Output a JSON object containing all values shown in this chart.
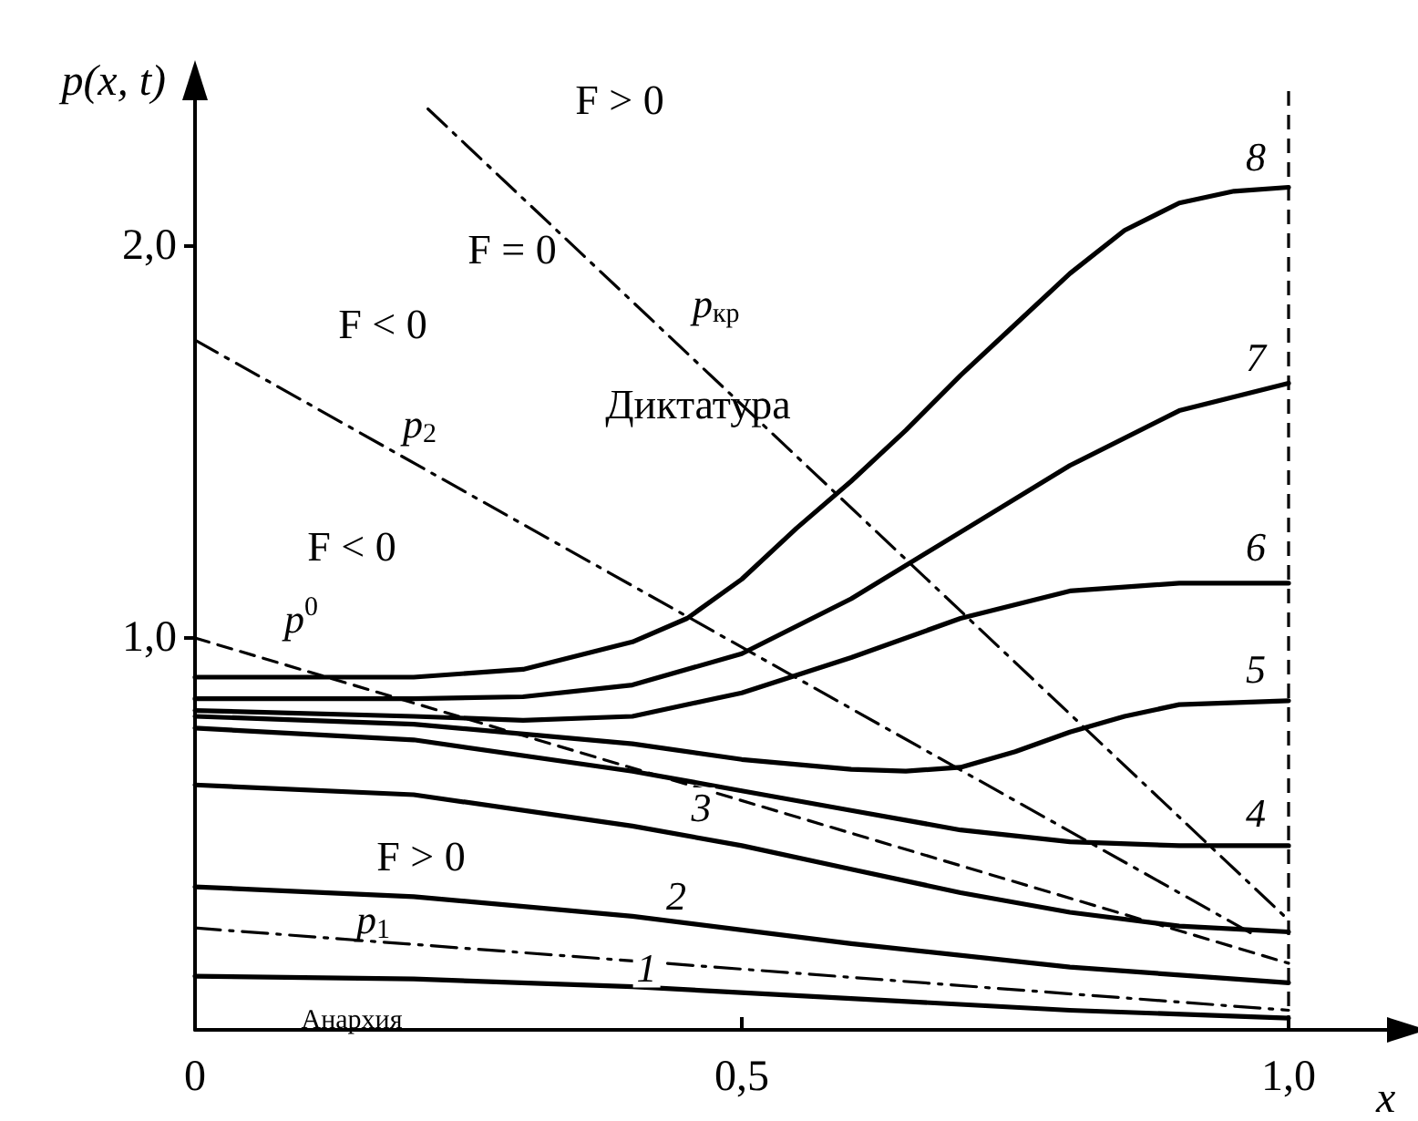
{
  "chart_data": {
    "type": "line",
    "xlabel": "x",
    "ylabel": "p(x, t)",
    "xlim": [
      0,
      1.1
    ],
    "ylim": [
      0,
      2.4
    ],
    "xticks": [
      0,
      {
        "value": 0.5,
        "label": "0,5"
      },
      {
        "value": 1,
        "label": "1,0"
      }
    ],
    "yticks": [
      {
        "value": 1,
        "label": "1,0"
      },
      {
        "value": 2,
        "label": "2,0"
      }
    ],
    "grid": false,
    "legend": false,
    "marker": "none",
    "series": [
      {
        "name": "1",
        "color": "#000000",
        "line_style": "solid",
        "x": [
          0,
          0.2,
          0.4,
          0.6,
          0.8,
          1.0
        ],
        "values": [
          0.137,
          0.13,
          0.11,
          0.08,
          0.05,
          0.03
        ]
      },
      {
        "name": "2",
        "color": "#000000",
        "line_style": "solid",
        "x": [
          0,
          0.2,
          0.4,
          0.6,
          0.8,
          1.0
        ],
        "values": [
          0.365,
          0.34,
          0.29,
          0.22,
          0.16,
          0.12
        ]
      },
      {
        "name": "3",
        "color": "#000000",
        "line_style": "solid",
        "x": [
          0,
          0.2,
          0.4,
          0.5,
          0.6,
          0.7,
          0.8,
          0.9,
          1.0
        ],
        "values": [
          0.625,
          0.6,
          0.52,
          0.47,
          0.41,
          0.35,
          0.3,
          0.265,
          0.25
        ]
      },
      {
        "name": "4",
        "color": "#000000",
        "line_style": "solid",
        "x": [
          0,
          0.2,
          0.4,
          0.5,
          0.6,
          0.7,
          0.8,
          0.9,
          1.0
        ],
        "values": [
          0.77,
          0.74,
          0.66,
          0.61,
          0.56,
          0.51,
          0.48,
          0.47,
          0.47
        ]
      },
      {
        "name": "5",
        "color": "#000000",
        "line_style": "solid",
        "x": [
          0,
          0.2,
          0.4,
          0.5,
          0.6,
          0.65,
          0.7,
          0.75,
          0.8,
          0.85,
          0.9,
          1.0
        ],
        "values": [
          0.8,
          0.78,
          0.73,
          0.69,
          0.665,
          0.66,
          0.67,
          0.71,
          0.76,
          0.8,
          0.83,
          0.84
        ]
      },
      {
        "name": "6",
        "color": "#000000",
        "line_style": "solid",
        "x": [
          0,
          0.2,
          0.3,
          0.4,
          0.5,
          0.6,
          0.7,
          0.8,
          0.9,
          1.0
        ],
        "values": [
          0.815,
          0.8,
          0.79,
          0.8,
          0.86,
          0.95,
          1.05,
          1.12,
          1.14,
          1.14
        ]
      },
      {
        "name": "7",
        "color": "#000000",
        "line_style": "solid",
        "x": [
          0,
          0.2,
          0.3,
          0.4,
          0.5,
          0.6,
          0.7,
          0.8,
          0.9,
          1.0
        ],
        "values": [
          0.845,
          0.845,
          0.85,
          0.88,
          0.96,
          1.1,
          1.27,
          1.44,
          1.58,
          1.65
        ]
      },
      {
        "name": "8",
        "color": "#000000",
        "line_style": "solid",
        "x": [
          0,
          0.2,
          0.3,
          0.4,
          0.45,
          0.5,
          0.55,
          0.6,
          0.65,
          0.7,
          0.75,
          0.8,
          0.85,
          0.9,
          0.95,
          1.0
        ],
        "values": [
          0.9,
          0.9,
          0.92,
          0.99,
          1.05,
          1.15,
          1.28,
          1.4,
          1.53,
          1.67,
          1.8,
          1.93,
          2.04,
          2.11,
          2.14,
          2.15
        ]
      },
      {
        "name": "p$^{0}$",
        "color": "#000000",
        "line_style": "dashed",
        "x": [
          0,
          1.0
        ],
        "values": [
          1.0,
          0.17
        ]
      },
      {
        "name": "p$_{1}$",
        "color": "#000000",
        "line_style": "dashdot",
        "x": [
          0,
          1.0
        ],
        "values": [
          0.26,
          0.05
        ]
      },
      {
        "name": "p$_{2}$",
        "color": "#000000",
        "line_style": "dashdot",
        "x": [
          0,
          0.97
        ],
        "values": [
          1.76,
          0.24
        ]
      },
      {
        "name": "p$_{кр}$",
        "color": "#000000",
        "line_style": "dashdot",
        "x": [
          0.213,
          1.0
        ],
        "values": [
          2.35,
          0.28
        ]
      }
    ],
    "ref_lines": [
      {
        "axis": "x",
        "value": 1.0,
        "color": "#000000",
        "line_style": "dashed"
      }
    ],
    "annotations": [
      "F > 0",
      "F = 0",
      "F < 0",
      "F < 0",
      "F > 0",
      "Диктатура",
      "Анархия"
    ]
  }
}
